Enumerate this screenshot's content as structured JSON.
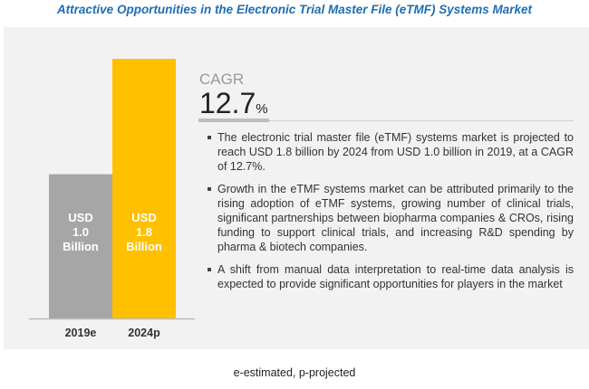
{
  "title": "Attractive Opportunities in the Electronic Trial Master File (eTMF) Systems Market",
  "cagr": {
    "label": "CAGR",
    "value": "12.7",
    "unit": "%"
  },
  "bullets": [
    "The electronic trial master file (eTMF) systems market is projected to reach USD 1.8 billion by 2024 from USD 1.0 billion in 2019, at a CAGR of 12.7%.",
    "Growth in the eTMF systems market can be attributed primarily to the rising adoption of eTMF systems, growing number of clinical trials, significant partnerships between biopharma companies & CROs, rising funding to support clinical trials, and increasing R&D spending by pharma & biotech companies.",
    "A shift from manual data interpretation to real-time data analysis is expected to provide significant opportunities for players in the market"
  ],
  "footer": "e-estimated, p-projected",
  "chart_data": {
    "type": "bar",
    "categories": [
      "2019e",
      "2024p"
    ],
    "values": [
      1.0,
      1.8
    ],
    "data_labels": [
      [
        "USD",
        "1.0",
        "Billion"
      ],
      [
        "USD",
        "1.8",
        "Billion"
      ]
    ],
    "colors": [
      "#a6a6a6",
      "#ffc000"
    ],
    "unit": "USD Billion",
    "ylim": [
      0,
      1.8
    ]
  }
}
